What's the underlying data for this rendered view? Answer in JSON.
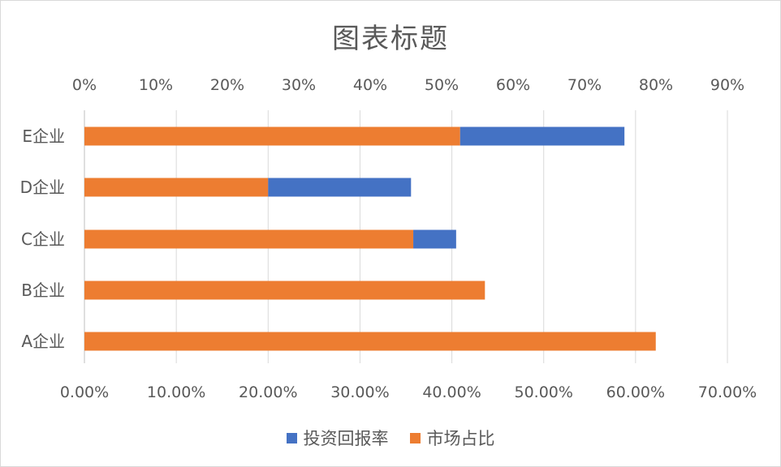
{
  "chart_data": {
    "type": "bar",
    "orientation": "horizontal",
    "stacked": true,
    "title": "图表标题",
    "categories": [
      "E企业",
      "D企业",
      "C企业",
      "B企业",
      "A企业"
    ],
    "series": [
      {
        "name": "市场占比",
        "color": "#ED7D31",
        "axis": "bottom",
        "values": [
          0.409,
          0.2,
          0.358,
          0.436,
          0.622
        ]
      },
      {
        "name": "投资回报率",
        "color": "#4472C4",
        "axis": "top",
        "values": [
          0.23,
          0.2,
          0.06,
          0.0,
          0.0
        ]
      }
    ],
    "top_axis": {
      "range": [
        0,
        0.9
      ],
      "ticks": [
        "0%",
        "10%",
        "20%",
        "30%",
        "40%",
        "50%",
        "60%",
        "70%",
        "80%",
        "90%"
      ]
    },
    "bottom_axis": {
      "range": [
        0,
        0.7
      ],
      "ticks": [
        "0.00%",
        "10.00%",
        "20.00%",
        "30.00%",
        "40.00%",
        "50.00%",
        "60.00%",
        "70.00%"
      ]
    },
    "gridlines": true,
    "legend_position": "bottom"
  }
}
